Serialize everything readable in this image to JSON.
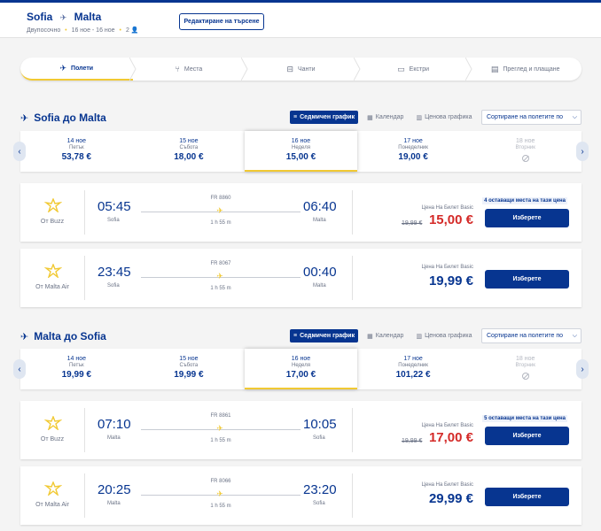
{
  "header": {
    "origin": "Sofia",
    "destination": "Malta",
    "trip_type": "Двупосочно",
    "dates": "16 ное - 16 ное",
    "passengers": "2",
    "edit_label": "Редактиране на търсене"
  },
  "steps": [
    {
      "label": "Полети",
      "icon": "plane-icon",
      "active": true
    },
    {
      "label": "Места",
      "icon": "seat-icon",
      "active": false
    },
    {
      "label": "Чанти",
      "icon": "bag-icon",
      "active": false
    },
    {
      "label": "Екстри",
      "icon": "extras-icon",
      "active": false
    },
    {
      "label": "Преглед и плащане",
      "icon": "review-icon",
      "active": false
    }
  ],
  "view_buttons": {
    "weekly": "Седмичен график",
    "calendar": "Календар",
    "price_chart": "Ценова графика",
    "sort": "Сортиране на полетите по"
  },
  "outbound": {
    "title": "Sofia до Malta",
    "dates": [
      {
        "date": "14 ное",
        "day": "Петък",
        "price": "53,78 €"
      },
      {
        "date": "15 ное",
        "day": "Събота",
        "price": "18,00 €"
      },
      {
        "date": "16 ное",
        "day": "Неделя",
        "price": "15,00 €"
      },
      {
        "date": "17 ное",
        "day": "Понеделник",
        "price": "19,00 €"
      },
      {
        "date": "18 ное",
        "day": "Вторник",
        "price": ""
      }
    ],
    "flights": [
      {
        "operator": "От Buzz",
        "dep_time": "05:45",
        "dep_city": "Sofia",
        "arr_time": "06:40",
        "arr_city": "Malta",
        "flight_no": "FR 8860",
        "duration": "1 h 55 m",
        "price_label": "Цена На Билет Basic",
        "old_price": "19,99 €",
        "price": "15,00 €",
        "seats": "4 оставащи места на тази цена",
        "select": "Изберете"
      },
      {
        "operator": "От Malta Air",
        "dep_time": "23:45",
        "dep_city": "Sofia",
        "arr_time": "00:40",
        "arr_city": "Malta",
        "flight_no": "FR 8067",
        "duration": "1 h 55 m",
        "price_label": "Цена На Билет Basic",
        "old_price": "",
        "price": "19,99 €",
        "seats": "",
        "select": "Изберете"
      }
    ]
  },
  "inbound": {
    "title": "Malta до Sofia",
    "dates": [
      {
        "date": "14 ное",
        "day": "Петък",
        "price": "19,99 €"
      },
      {
        "date": "15 ное",
        "day": "Събота",
        "price": "19,99 €"
      },
      {
        "date": "16 ное",
        "day": "Неделя",
        "price": "17,00 €"
      },
      {
        "date": "17 ное",
        "day": "Понеделник",
        "price": "101,22 €"
      },
      {
        "date": "18 ное",
        "day": "Вторник",
        "price": ""
      }
    ],
    "flights": [
      {
        "operator": "От Buzz",
        "dep_time": "07:10",
        "dep_city": "Malta",
        "arr_time": "10:05",
        "arr_city": "Sofia",
        "flight_no": "FR 8861",
        "duration": "1 h 55 m",
        "price_label": "Цена На Билет Basic",
        "old_price": "19,99 €",
        "price": "17,00 €",
        "seats": "5 оставащи места на тази цена",
        "select": "Изберете"
      },
      {
        "operator": "От Malta Air",
        "dep_time": "20:25",
        "dep_city": "Malta",
        "arr_time": "23:20",
        "arr_city": "Sofia",
        "flight_no": "FR 8066",
        "duration": "1 h 55 m",
        "price_label": "Цена На Билет Basic",
        "old_price": "",
        "price": "29,99 €",
        "seats": "",
        "select": "Изберете"
      }
    ]
  },
  "colors": {
    "brand": "#073590",
    "accent": "#f1c933",
    "promo": "#d42a28"
  }
}
